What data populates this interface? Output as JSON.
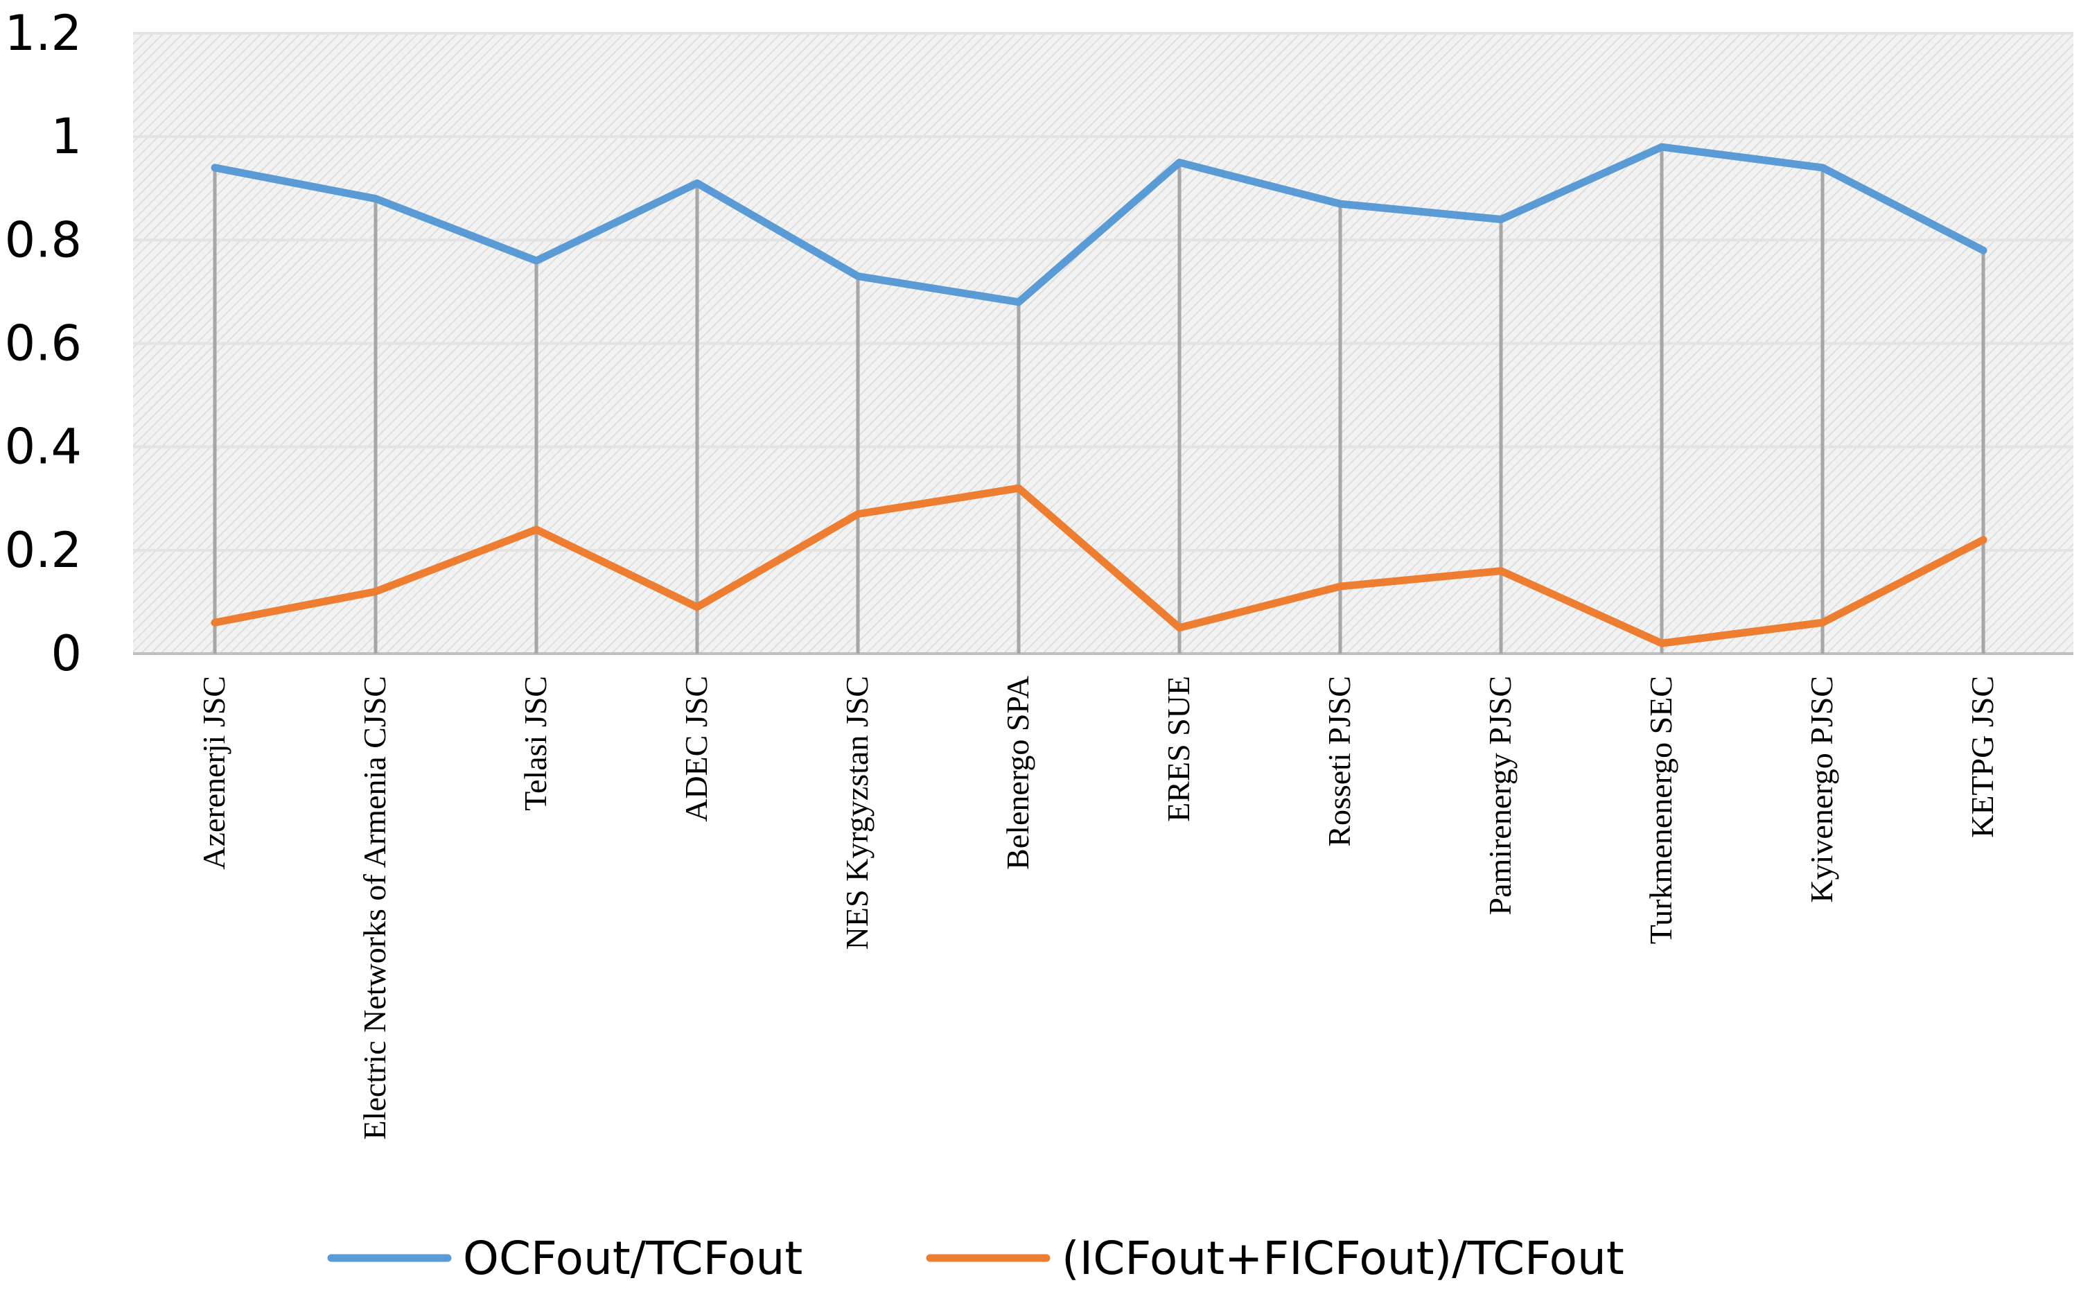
{
  "chart_data": {
    "type": "line",
    "title": "",
    "xlabel": "",
    "ylabel": "",
    "ylim": [
      0,
      1.2
    ],
    "yticks": [
      "0",
      "0.2",
      "0.4",
      "0.6",
      "0.8",
      "1",
      "1.2"
    ],
    "categories": [
      "Azerenerji JSC",
      "Electric Networks of Armenia CJSC",
      "Telasi JSC",
      "ADEC JSC",
      "NES Kyrgyzstan JSC",
      "Belenergo SPA",
      "ERES SUE",
      "Rosseti PJSC",
      "Pamirenergy PJSC",
      "Turkmenenergo SEC",
      "Kyivenergo PJSC",
      "KETPG JSC"
    ],
    "series": [
      {
        "name": "OCFout/TCFout",
        "color": "#5b9bd5",
        "values": [
          0.94,
          0.88,
          0.76,
          0.91,
          0.73,
          0.68,
          0.95,
          0.87,
          0.84,
          0.98,
          0.94,
          0.78
        ]
      },
      {
        "name": "(ICFout+FICFout)/TCFout",
        "color": "#ed7d31",
        "values": [
          0.06,
          0.12,
          0.24,
          0.09,
          0.27,
          0.32,
          0.05,
          0.13,
          0.16,
          0.02,
          0.06,
          0.22
        ]
      }
    ],
    "drop_lines": true,
    "grid": true,
    "plot_background": "hatched light gray",
    "legend_position": "bottom"
  }
}
